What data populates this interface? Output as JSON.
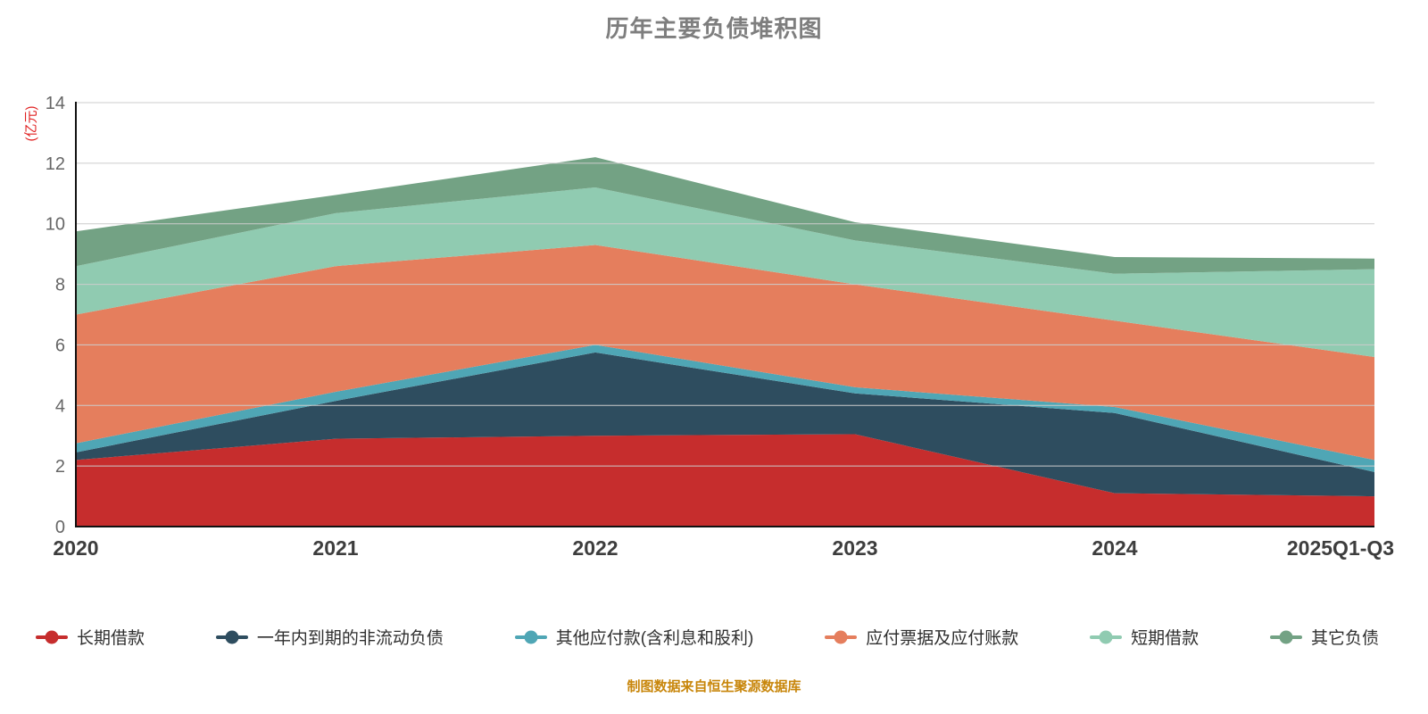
{
  "footer": "制图数据来自恒生聚源数据库",
  "colors": {
    "background": "#ffffff",
    "title": "#7e7e7e",
    "axis": "#111111",
    "grid": "#cccccc",
    "tick_label": "#666666",
    "x_label": "#3d3d3d",
    "y_unit_label": "#e01f1f",
    "footer": "#c8860b",
    "legend_text": "#2f2f2f"
  },
  "chart_data": {
    "type": "area",
    "stacked": true,
    "title": "历年主要负债堆积图",
    "xlabel": "",
    "ylabel": "(亿元)",
    "categories": [
      "2020",
      "2021",
      "2022",
      "2023",
      "2024",
      "2025Q1-Q3"
    ],
    "series": [
      {
        "name": "长期借款",
        "color": "#c62d2d",
        "values": [
          2.2,
          2.9,
          3.0,
          3.05,
          1.1,
          1.0
        ]
      },
      {
        "name": "一年内到期的非流动负债",
        "color": "#2e4d5f",
        "values": [
          0.25,
          1.25,
          2.75,
          1.35,
          2.65,
          0.8
        ]
      },
      {
        "name": "其他应付款(含利息和股利)",
        "color": "#4fa6b5",
        "values": [
          0.3,
          0.3,
          0.25,
          0.2,
          0.2,
          0.4
        ]
      },
      {
        "name": "应付票据及应付账款",
        "color": "#e57e5d",
        "values": [
          4.25,
          4.15,
          3.3,
          3.4,
          2.85,
          3.4
        ]
      },
      {
        "name": "短期借款",
        "color": "#90cbb1",
        "values": [
          1.6,
          1.75,
          1.9,
          1.45,
          1.55,
          2.9
        ]
      },
      {
        "name": "其它负债",
        "color": "#73a284",
        "values": [
          1.15,
          0.6,
          1.0,
          0.6,
          0.55,
          0.35
        ]
      }
    ],
    "totals": [
      9.75,
      10.95,
      12.2,
      10.05,
      8.9,
      8.85
    ],
    "ylim": [
      0,
      14
    ],
    "y_ticks": [
      0,
      2,
      4,
      6,
      8,
      10,
      12,
      14
    ],
    "grid": true,
    "legend_position": "bottom"
  }
}
